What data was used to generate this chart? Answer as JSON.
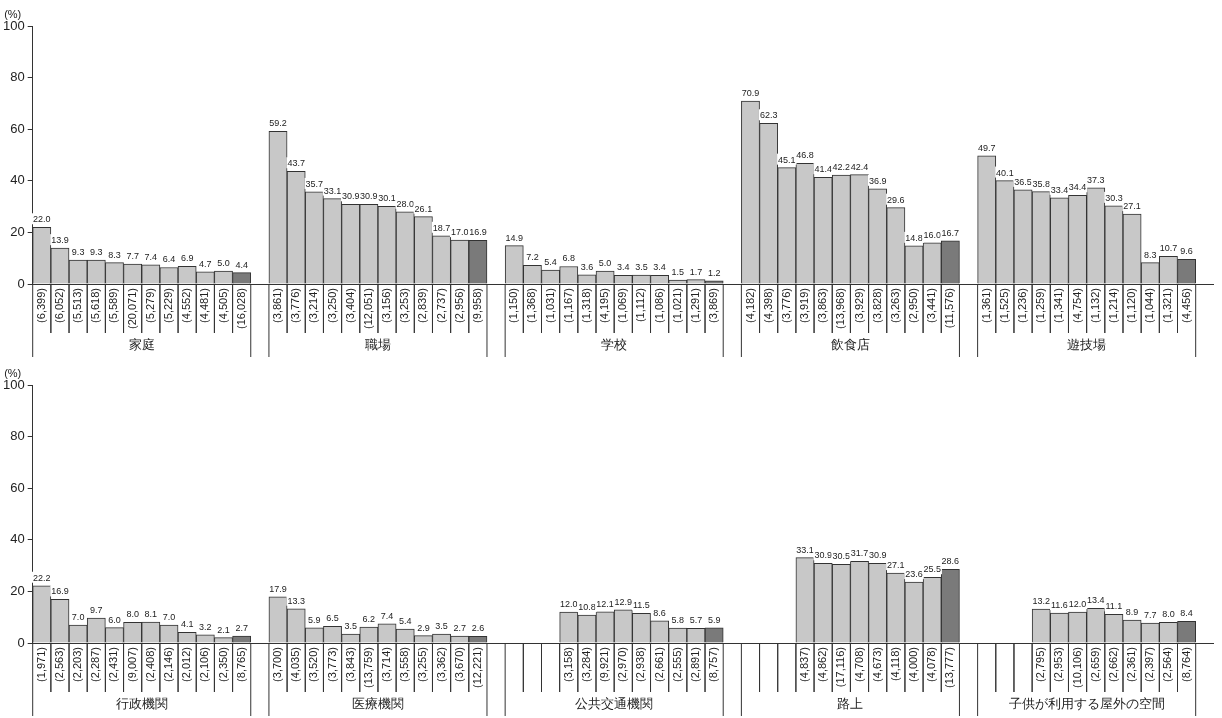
{
  "chart_data": [
    {
      "type": "bar",
      "ylabel": "(%)",
      "ylim": [
        0,
        100
      ],
      "yticks": [
        0,
        20,
        40,
        60,
        80,
        100
      ],
      "legend": false,
      "grid": false,
      "annotations": [
        "家庭",
        "職場",
        "学校",
        "飲食店",
        "遊技場"
      ],
      "categories": [
        "(6,399)",
        "(6,052)",
        "(5,513)",
        "(5,618)",
        "(5,589)",
        "(20,071)",
        "(5,279)",
        "(5,229)",
        "(4,552)",
        "(4,481)",
        "(4,505)",
        "(16,028)",
        null,
        "(3,861)",
        "(3,776)",
        "(3,214)",
        "(3,250)",
        "(3,404)",
        "(12,051)",
        "(3,156)",
        "(3,253)",
        "(2,839)",
        "(2,737)",
        "(2,956)",
        "(9,958)",
        null,
        "(1,150)",
        "(1,368)",
        "(1,031)",
        "(1,167)",
        "(1,318)",
        "(4,195)",
        "(1,069)",
        "(1,112)",
        "(1,086)",
        "(1,021)",
        "(1,291)",
        "(3,869)",
        null,
        "(4,182)",
        "(4,398)",
        "(3,776)",
        "(3,919)",
        "(3,863)",
        "(13,968)",
        "(3,929)",
        "(3,828)",
        "(3,263)",
        "(2,950)",
        "(3,441)",
        "(11,576)",
        null,
        "(1,361)",
        "(1,525)",
        "(1,236)",
        "(1,259)",
        "(1,341)",
        "(4,754)",
        "(1,132)",
        "(1,214)",
        "(1,120)",
        "(1,044)",
        "(1,321)",
        "(4,456)",
        null
      ],
      "values": [
        22.0,
        13.9,
        9.3,
        9.3,
        8.3,
        7.7,
        7.4,
        6.4,
        6.9,
        4.7,
        5.0,
        4.4,
        null,
        59.2,
        43.7,
        35.7,
        33.1,
        30.9,
        30.9,
        30.1,
        28.0,
        26.1,
        18.7,
        17.0,
        16.9,
        null,
        14.9,
        7.2,
        5.4,
        6.8,
        3.6,
        5.0,
        3.4,
        3.5,
        3.4,
        1.5,
        1.7,
        1.2,
        null,
        70.9,
        62.3,
        45.1,
        46.8,
        41.4,
        42.2,
        42.4,
        36.9,
        29.6,
        14.8,
        16.0,
        16.7,
        null,
        49.7,
        40.1,
        36.5,
        35.8,
        33.4,
        34.4,
        37.3,
        30.3,
        27.1,
        8.3,
        10.7,
        9.6,
        null
      ],
      "value_labels": [
        "22.0",
        "13.9",
        "9.3",
        "9.3",
        "8.3",
        "7.7",
        "7.4",
        "6.4",
        "6.9",
        "4.7",
        "5.0",
        "4.4",
        null,
        "59.2",
        "43.7",
        "35.7",
        "33.1",
        "30.9",
        "30.9",
        "30.1",
        "28.0",
        "26.1",
        "18.7",
        "17.0",
        "16.9",
        null,
        "14.9",
        "7.2",
        "5.4",
        "6.8",
        "3.6",
        "5.0",
        "3.4",
        "3.5",
        "3.4",
        "1.5",
        "1.7",
        "1.2",
        null,
        "70.9",
        "62.3",
        "45.1",
        "46.8",
        "41.4",
        "42.2",
        "42.4",
        "36.9",
        "29.6",
        "14.8",
        "16.0",
        "16.7",
        null,
        "49.7",
        "40.1",
        "36.5",
        "35.8",
        "33.4",
        "34.4",
        "37.3",
        "30.3",
        "27.1",
        "8.3",
        "10.7",
        "9.6",
        null
      ],
      "colors": [
        "#c8c8c8",
        "#c8c8c8",
        "#c8c8c8",
        "#c8c8c8",
        "#c8c8c8",
        "#c8c8c8",
        "#c8c8c8",
        "#c8c8c8",
        "#c8c8c8",
        "#c8c8c8",
        "#c8c8c8",
        "#7a7a7a",
        null,
        "#c8c8c8",
        "#c8c8c8",
        "#c8c8c8",
        "#c8c8c8",
        "#c8c8c8",
        "#c8c8c8",
        "#c8c8c8",
        "#c8c8c8",
        "#c8c8c8",
        "#c8c8c8",
        "#c8c8c8",
        "#7a7a7a",
        null,
        "#c8c8c8",
        "#c8c8c8",
        "#c8c8c8",
        "#c8c8c8",
        "#c8c8c8",
        "#c8c8c8",
        "#c8c8c8",
        "#c8c8c8",
        "#c8c8c8",
        "#c8c8c8",
        "#c8c8c8",
        "#7a7a7a",
        null,
        "#c8c8c8",
        "#c8c8c8",
        "#c8c8c8",
        "#c8c8c8",
        "#c8c8c8",
        "#c8c8c8",
        "#c8c8c8",
        "#c8c8c8",
        "#c8c8c8",
        "#c8c8c8",
        "#c8c8c8",
        "#7a7a7a",
        null,
        "#c8c8c8",
        "#c8c8c8",
        "#c8c8c8",
        "#c8c8c8",
        "#c8c8c8",
        "#c8c8c8",
        "#c8c8c8",
        "#c8c8c8",
        "#c8c8c8",
        "#c8c8c8",
        "#c8c8c8",
        "#7a7a7a",
        null
      ]
    },
    {
      "type": "bar",
      "ylabel": "(%)",
      "ylim": [
        0,
        100
      ],
      "yticks": [
        0,
        20,
        40,
        60,
        80,
        100
      ],
      "legend": false,
      "grid": false,
      "annotations": [
        "行政機関",
        "医療機関",
        "公共交通機関",
        "路上",
        "子供が利用する屋外の空間"
      ],
      "categories": [
        "(1,971)",
        "(2,563)",
        "(2,203)",
        "(2,287)",
        "(2,431)",
        "(9,007)",
        "(2,408)",
        "(2,146)",
        "(2,012)",
        "(2,106)",
        "(2,350)",
        "(8,765)",
        null,
        "(3,700)",
        "(4,035)",
        "(3,520)",
        "(3,773)",
        "(3,843)",
        "(13,759)",
        "(3,714)",
        "(3,558)",
        "(3,255)",
        "(3,362)",
        "(3,670)",
        "(12,221)",
        null,
        null,
        null,
        null,
        "(3,158)",
        "(3,284)",
        "(9,921)",
        "(2,970)",
        "(2,938)",
        "(2,661)",
        "(2,555)",
        "(2,891)",
        "(8,757)",
        null,
        null,
        null,
        null,
        "(4,837)",
        "(4,862)",
        "(17,116)",
        "(4,708)",
        "(4,673)",
        "(4,118)",
        "(4,000)",
        "(4,078)",
        "(13,777)",
        null,
        null,
        null,
        null,
        "(2,795)",
        "(2,953)",
        "(10,106)",
        "(2,659)",
        "(2,662)",
        "(2,361)",
        "(2,397)",
        "(2,564)",
        "(8,764)",
        null
      ],
      "values": [
        22.2,
        16.9,
        7.0,
        9.7,
        6.0,
        8.0,
        8.1,
        7.0,
        4.1,
        3.2,
        2.1,
        2.7,
        null,
        17.9,
        13.3,
        5.9,
        6.5,
        3.5,
        6.2,
        7.4,
        5.4,
        2.9,
        3.5,
        2.7,
        2.6,
        null,
        null,
        null,
        null,
        12.0,
        10.8,
        12.1,
        12.9,
        11.5,
        8.6,
        5.8,
        5.7,
        5.9,
        null,
        null,
        null,
        null,
        33.1,
        30.9,
        30.5,
        31.7,
        30.9,
        27.1,
        23.6,
        25.5,
        28.6,
        null,
        null,
        null,
        null,
        13.2,
        11.6,
        12.0,
        13.4,
        11.1,
        8.9,
        7.7,
        8.0,
        8.4,
        null
      ],
      "value_labels": [
        "22.2",
        "16.9",
        "7.0",
        "9.7",
        "6.0",
        "8.0",
        "8.1",
        "7.0",
        "4.1",
        "3.2",
        "2.1",
        "2.7",
        null,
        "17.9",
        "13.3",
        "5.9",
        "6.5",
        "3.5",
        "6.2",
        "7.4",
        "5.4",
        "2.9",
        "3.5",
        "2.7",
        "2.6",
        null,
        null,
        null,
        null,
        "12.0",
        "10.8",
        "12.1",
        "12.9",
        "11.5",
        "8.6",
        "5.8",
        "5.7",
        "5.9",
        null,
        null,
        null,
        null,
        "33.1",
        "30.9",
        "30.5",
        "31.7",
        "30.9",
        "27.1",
        "23.6",
        "25.5",
        "28.6",
        null,
        null,
        null,
        null,
        "13.2",
        "11.6",
        "12.0",
        "13.4",
        "11.1",
        "8.9",
        "7.7",
        "8.0",
        "8.4",
        null
      ],
      "colors": [
        "#c8c8c8",
        "#c8c8c8",
        "#c8c8c8",
        "#c8c8c8",
        "#c8c8c8",
        "#c8c8c8",
        "#c8c8c8",
        "#c8c8c8",
        "#c8c8c8",
        "#c8c8c8",
        "#c8c8c8",
        "#7a7a7a",
        null,
        "#c8c8c8",
        "#c8c8c8",
        "#c8c8c8",
        "#c8c8c8",
        "#c8c8c8",
        "#c8c8c8",
        "#c8c8c8",
        "#c8c8c8",
        "#c8c8c8",
        "#c8c8c8",
        "#c8c8c8",
        "#7a7a7a",
        null,
        null,
        null,
        null,
        "#c8c8c8",
        "#c8c8c8",
        "#c8c8c8",
        "#c8c8c8",
        "#c8c8c8",
        "#c8c8c8",
        "#c8c8c8",
        "#c8c8c8",
        "#7a7a7a",
        null,
        null,
        null,
        null,
        "#c8c8c8",
        "#c8c8c8",
        "#c8c8c8",
        "#c8c8c8",
        "#c8c8c8",
        "#c8c8c8",
        "#c8c8c8",
        "#c8c8c8",
        "#7a7a7a",
        null,
        null,
        null,
        null,
        "#c8c8c8",
        "#c8c8c8",
        "#c8c8c8",
        "#c8c8c8",
        "#c8c8c8",
        "#c8c8c8",
        "#c8c8c8",
        "#c8c8c8",
        "#7a7a7a",
        null
      ]
    }
  ]
}
